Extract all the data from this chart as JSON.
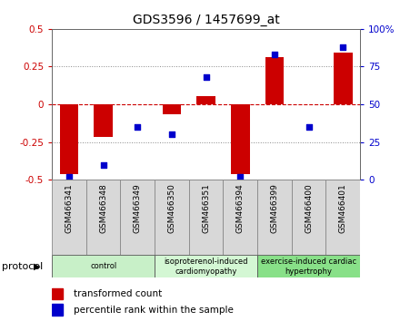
{
  "title": "GDS3596 / 1457699_at",
  "samples": [
    "GSM466341",
    "GSM466348",
    "GSM466349",
    "GSM466350",
    "GSM466351",
    "GSM466394",
    "GSM466399",
    "GSM466400",
    "GSM466401"
  ],
  "transformed_count": [
    -0.46,
    -0.215,
    0.0,
    -0.065,
    0.055,
    -0.46,
    0.31,
    0.0,
    0.345
  ],
  "percentile_rank": [
    2,
    10,
    35,
    30,
    68,
    2,
    83,
    35,
    88
  ],
  "groups": [
    {
      "label": "control",
      "start": 0,
      "end": 3,
      "color": "#c8f0c8"
    },
    {
      "label": "isoproterenol-induced\ncardiomyopathy",
      "start": 3,
      "end": 6,
      "color": "#d4f7d4"
    },
    {
      "label": "exercise-induced cardiac\nhypertrophy",
      "start": 6,
      "end": 9,
      "color": "#88e088"
    }
  ],
  "protocol_label": "protocol",
  "ylim_left": [
    -0.5,
    0.5
  ],
  "ylim_right": [
    0,
    100
  ],
  "yticks_left": [
    -0.5,
    -0.25,
    0,
    0.25,
    0.5
  ],
  "yticks_right": [
    0,
    25,
    50,
    75,
    100
  ],
  "ytick_labels_left": [
    "-0.5",
    "-0.25",
    "0",
    "0.25",
    "0.5"
  ],
  "ytick_labels_right": [
    "0",
    "25",
    "50",
    "75",
    "100%"
  ],
  "bar_color": "#cc0000",
  "dot_color": "#0000cc",
  "bar_width": 0.55,
  "dotted_line_color": "#888888",
  "zero_line_color": "#cc0000",
  "legend_red": "transformed count",
  "legend_blue": "percentile rank within the sample"
}
